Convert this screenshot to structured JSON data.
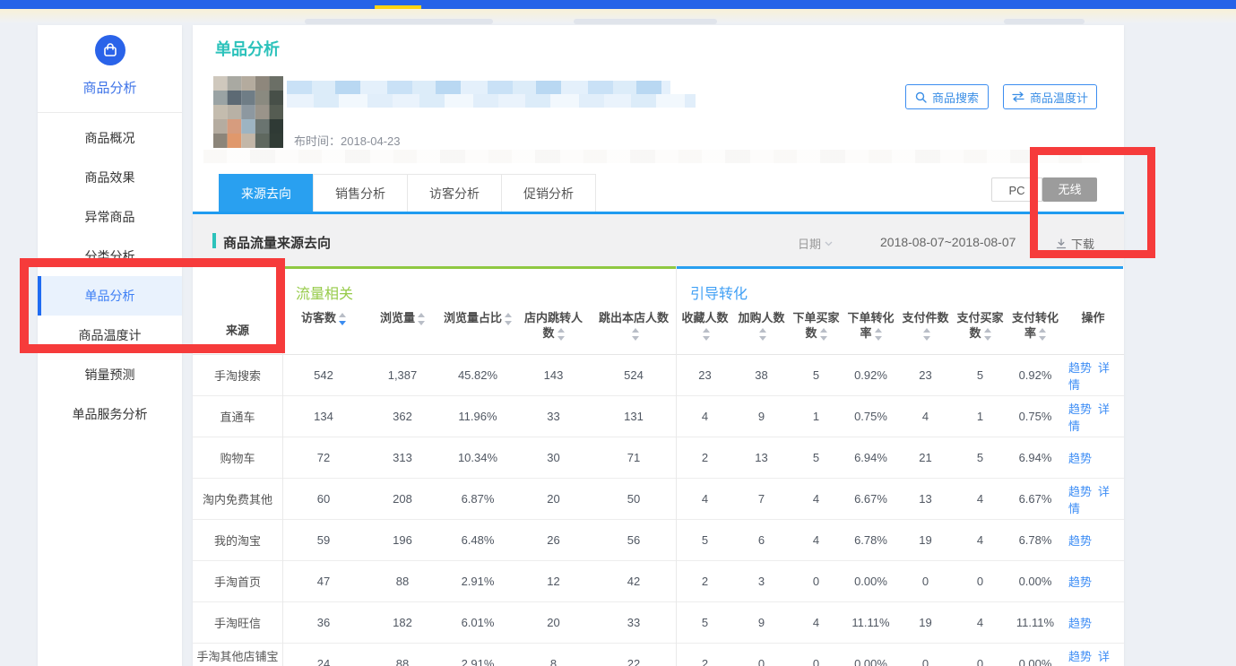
{
  "colors": {
    "topbar_blue": "#2563e8",
    "accent_yellow": "#ffd412",
    "teal": "#2cc2bb",
    "tab_active_blue": "#29a0f0",
    "flow_green": "#97cb4a",
    "conv_blue": "#41a0f5",
    "link_blue": "#3d8df5",
    "annotation_red": "#f63b3b",
    "wireless_gray": "#9c9c9c"
  },
  "icons": [
    "bag-icon",
    "search-icon",
    "swap-arrows-icon",
    "caret-down-icon",
    "download-icon",
    "sort-arrows-icon"
  ],
  "sidebar": {
    "logo_label": "商品分析",
    "items": [
      {
        "label": "商品概况",
        "active": false
      },
      {
        "label": "商品效果",
        "active": false
      },
      {
        "label": "异常商品",
        "active": false
      },
      {
        "label": "分类分析",
        "active": false
      },
      {
        "label": "单品分析",
        "active": true
      },
      {
        "label": "商品温度计",
        "active": false
      },
      {
        "label": "销量预测",
        "active": false
      },
      {
        "label": "单品服务分析",
        "active": false
      }
    ]
  },
  "header": {
    "page_title": "单品分析",
    "publish_time": "布时间：2018-04-23",
    "search_button": "商品搜索",
    "thermometer_button": "商品温度计"
  },
  "tabs": [
    {
      "label": "来源去向",
      "active": true
    },
    {
      "label": "销售分析",
      "active": false
    },
    {
      "label": "访客分析",
      "active": false
    },
    {
      "label": "促销分析",
      "active": false
    }
  ],
  "device_toggle": [
    {
      "label": "PC",
      "active": false
    },
    {
      "label": "无线",
      "active": true
    }
  ],
  "section": {
    "title": "商品流量来源去向",
    "date_label": "日期",
    "date_range": "2018-08-07~2018-08-07",
    "download_label": "下载"
  },
  "table": {
    "source_header": "来源",
    "groups": [
      {
        "label": "流量相关"
      },
      {
        "label": "引导转化"
      }
    ],
    "columns": [
      {
        "label": "访客数",
        "sortable": true,
        "sorted": "desc"
      },
      {
        "label": "浏览量",
        "sortable": true
      },
      {
        "label": "浏览量占比",
        "sortable": true
      },
      {
        "label": "店内跳转人数",
        "sortable": true
      },
      {
        "label": "跳出本店人数",
        "sortable": true
      },
      {
        "label": "收藏人数",
        "sortable": true
      },
      {
        "label": "加购人数",
        "sortable": true
      },
      {
        "label": "下单买家数",
        "sortable": true
      },
      {
        "label": "下单转化率",
        "sortable": true
      },
      {
        "label": "支付件数",
        "sortable": true
      },
      {
        "label": "支付买家数",
        "sortable": true
      },
      {
        "label": "支付转化率",
        "sortable": true
      },
      {
        "label": "操作",
        "sortable": false
      }
    ],
    "rows": [
      {
        "source": "手淘搜索",
        "values": [
          "542",
          "1,387",
          "45.82%",
          "143",
          "524",
          "23",
          "38",
          "5",
          "0.92%",
          "23",
          "5",
          "0.92%"
        ],
        "actions": [
          "趋势",
          "详情"
        ]
      },
      {
        "source": "直通车",
        "values": [
          "134",
          "362",
          "11.96%",
          "33",
          "131",
          "4",
          "9",
          "1",
          "0.75%",
          "4",
          "1",
          "0.75%"
        ],
        "actions": [
          "趋势",
          "详情"
        ]
      },
      {
        "source": "购物车",
        "values": [
          "72",
          "313",
          "10.34%",
          "30",
          "71",
          "2",
          "13",
          "5",
          "6.94%",
          "21",
          "5",
          "6.94%"
        ],
        "actions": [
          "趋势"
        ]
      },
      {
        "source": "淘内免费其他",
        "values": [
          "60",
          "208",
          "6.87%",
          "20",
          "50",
          "4",
          "7",
          "4",
          "6.67%",
          "13",
          "4",
          "6.67%"
        ],
        "actions": [
          "趋势",
          "详情"
        ]
      },
      {
        "source": "我的淘宝",
        "values": [
          "59",
          "196",
          "6.48%",
          "26",
          "56",
          "5",
          "6",
          "4",
          "6.78%",
          "19",
          "4",
          "6.78%"
        ],
        "actions": [
          "趋势"
        ]
      },
      {
        "source": "手淘首页",
        "values": [
          "47",
          "88",
          "2.91%",
          "12",
          "42",
          "2",
          "3",
          "0",
          "0.00%",
          "0",
          "0",
          "0.00%"
        ],
        "actions": [
          "趋势"
        ]
      },
      {
        "source": "手淘旺信",
        "values": [
          "36",
          "182",
          "6.01%",
          "20",
          "33",
          "5",
          "9",
          "4",
          "11.11%",
          "19",
          "4",
          "11.11%"
        ],
        "actions": [
          "趋势"
        ]
      },
      {
        "source": "手淘其他店铺宝贝",
        "values": [
          "24",
          "88",
          "2.91%",
          "8",
          "22",
          "2",
          "0",
          "0",
          "0.00%",
          "0",
          "0",
          "0.00%"
        ],
        "actions": [
          "趋势",
          "详情"
        ]
      }
    ]
  }
}
